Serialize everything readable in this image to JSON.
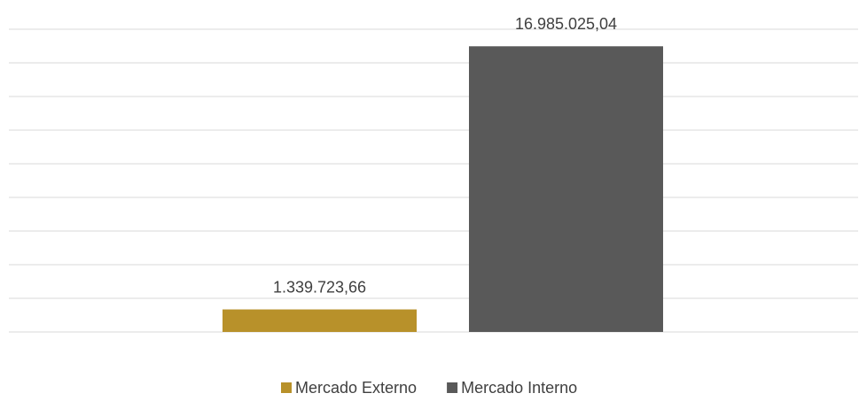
{
  "chart_data": {
    "type": "bar",
    "series": [
      {
        "name": "Mercado Externo",
        "color": "#b8912a",
        "values": [
          1339723.66
        ],
        "value_labels": [
          "1.339.723,66"
        ]
      },
      {
        "name": "Mercado Interno",
        "color": "#595959",
        "values": [
          16985025.04
        ],
        "value_labels": [
          "16.985.025,04"
        ]
      }
    ],
    "ylim": [
      0,
      18000000
    ],
    "yticks": [
      0,
      2000000,
      4000000,
      6000000,
      8000000,
      10000000,
      12000000,
      14000000,
      16000000,
      18000000
    ],
    "grid": true
  }
}
